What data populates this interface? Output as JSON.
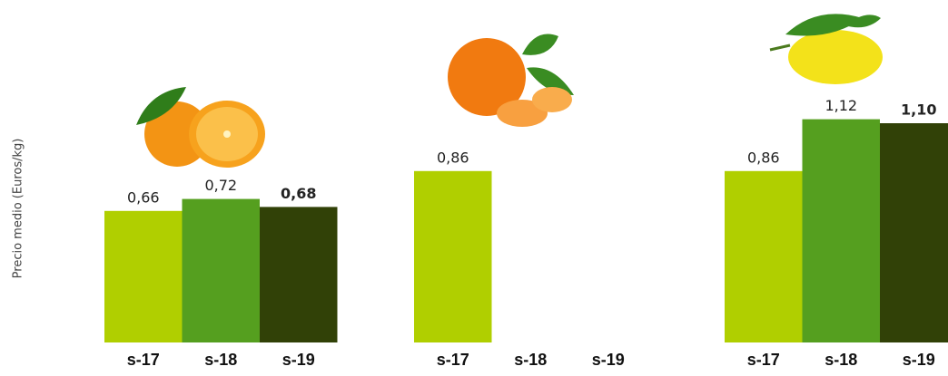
{
  "chart_data": [
    {
      "type": "bar",
      "ylabel": "Precio medio (Euros/kg)",
      "categories": [
        "s-17",
        "s-18",
        "s-19"
      ],
      "values": [
        0.66,
        0.72,
        0.68
      ],
      "value_labels": [
        "0,66",
        "0,72",
        "0,68"
      ],
      "colors": [
        "#b0cf00",
        "#559f1f",
        "#314107"
      ],
      "ylim": [
        0,
        1.2
      ]
    },
    {
      "type": "bar",
      "categories": [
        "s-17",
        "s-18",
        "s-19"
      ],
      "values": [
        0.86,
        null,
        null
      ],
      "value_labels": [
        "0,86",
        null,
        null
      ],
      "colors": [
        "#b0cf00",
        "#559f1f",
        "#314107"
      ],
      "ylim": [
        0,
        1.2
      ]
    },
    {
      "type": "bar",
      "categories": [
        "s-17",
        "s-18",
        "s-19"
      ],
      "values": [
        0.86,
        1.12,
        1.1
      ],
      "value_labels": [
        "0,86",
        "1,12",
        "1,10"
      ],
      "colors": [
        "#b0cf00",
        "#559f1f",
        "#314107"
      ],
      "ylim": [
        0,
        1.2
      ]
    }
  ]
}
